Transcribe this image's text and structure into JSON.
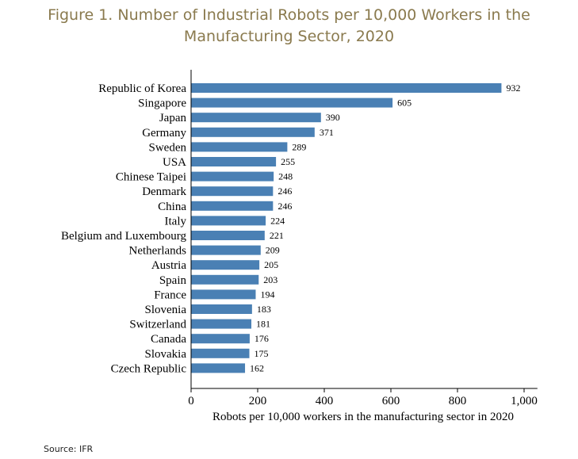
{
  "title_line1": "Figure 1. Number of Industrial Robots per 10,000 Workers in the",
  "title_line2": "Manufacturing Sector, 2020",
  "source": "Source:  IFR",
  "chart_data": {
    "type": "bar",
    "orientation": "horizontal",
    "categories": [
      "Republic of Korea",
      "Singapore",
      "Japan",
      "Germany",
      "Sweden",
      "USA",
      "Chinese Taipei",
      "Denmark",
      "China",
      "Italy",
      "Belgium and Luxembourg",
      "Netherlands",
      "Austria",
      "Spain",
      "France",
      "Slovenia",
      "Switzerland",
      "Canada",
      "Slovakia",
      "Czech Republic"
    ],
    "values": [
      932,
      605,
      390,
      371,
      289,
      255,
      248,
      246,
      246,
      224,
      221,
      209,
      205,
      203,
      194,
      183,
      181,
      176,
      175,
      162
    ],
    "xlabel": "Robots per 10,000 workers in the manufacturing sector in 2020",
    "ylabel": "",
    "xlim": [
      0,
      1040
    ],
    "xticks": [
      0,
      200,
      400,
      600,
      800,
      1000
    ],
    "xtick_labels": [
      "0",
      "200",
      "400",
      "600",
      "800",
      "1,000"
    ],
    "bar_color": "#4a80b4"
  }
}
